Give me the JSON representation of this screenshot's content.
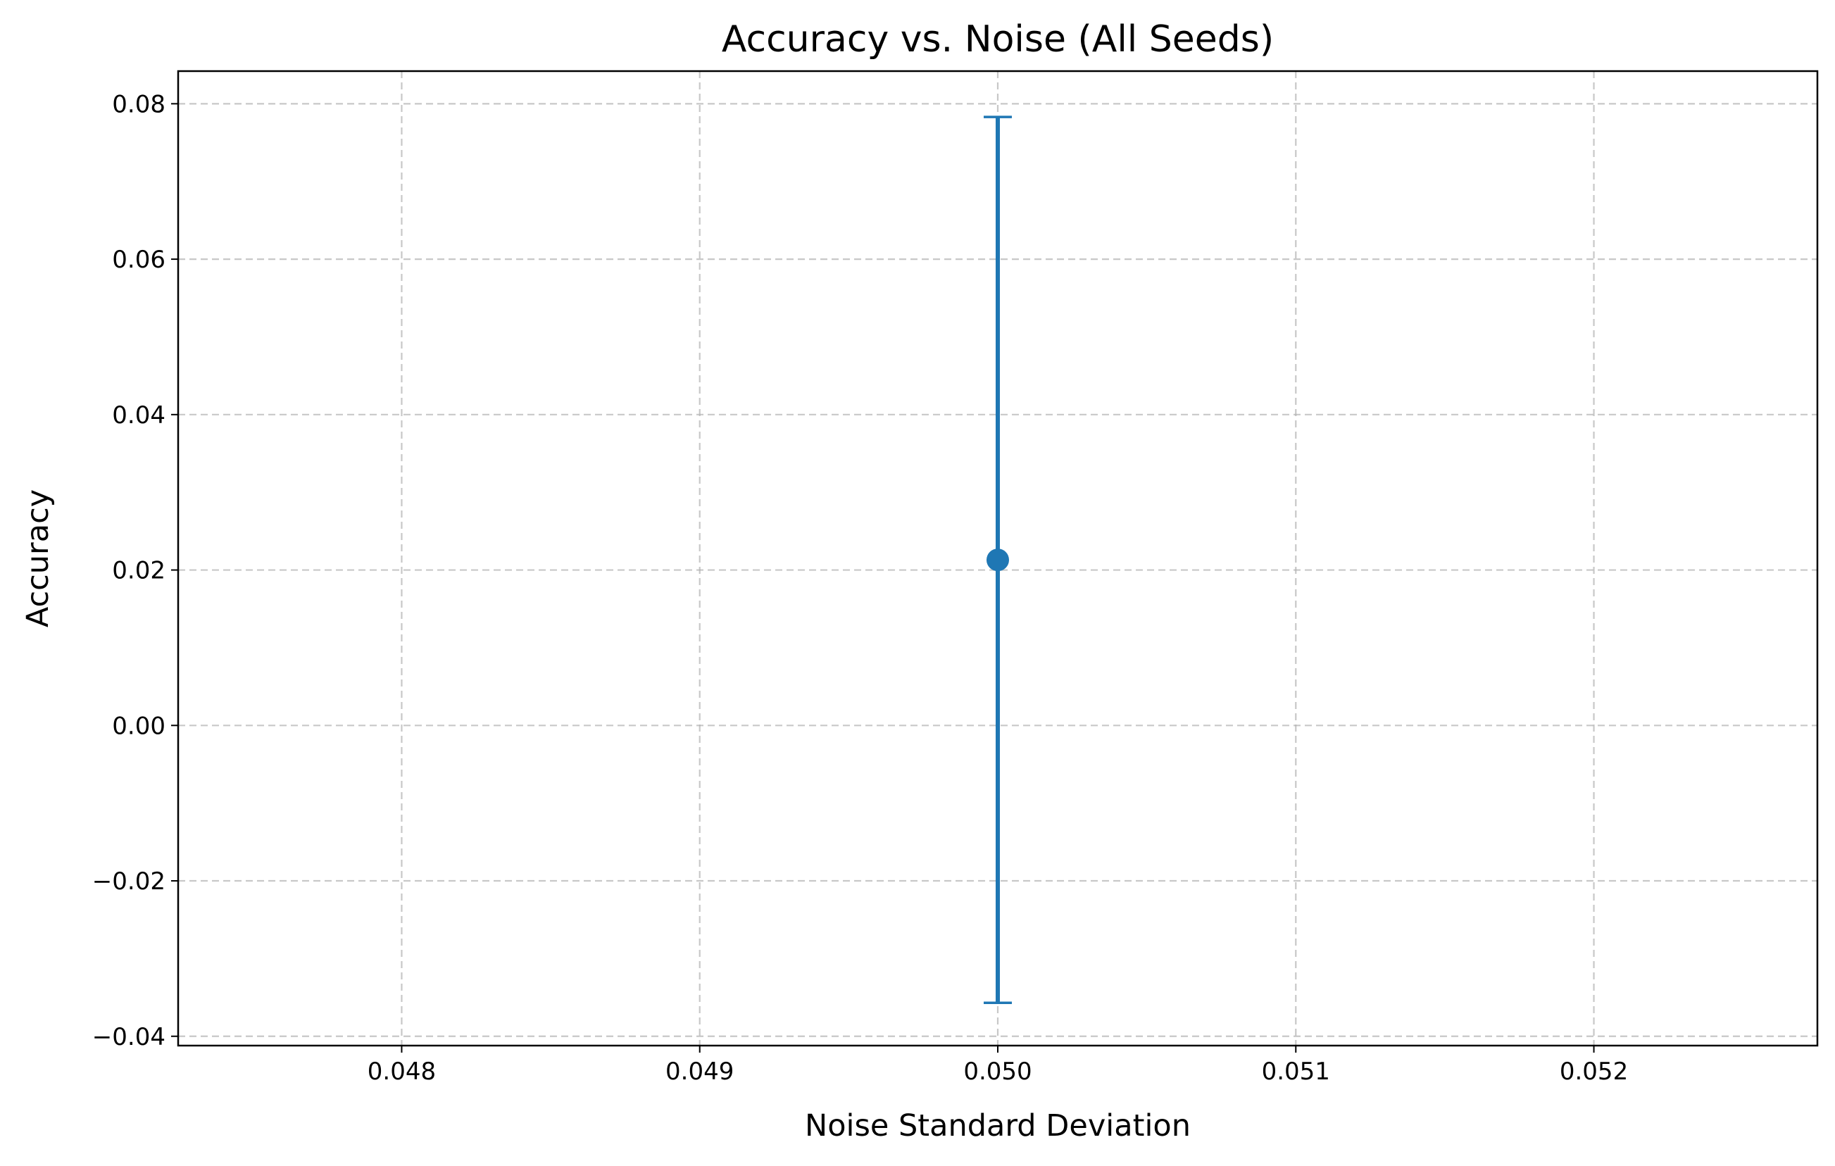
{
  "chart_data": {
    "type": "scatter",
    "title": "Accuracy vs. Noise (All Seeds)",
    "xlabel": "Noise Standard Deviation",
    "ylabel": "Accuracy",
    "xlim": [
      0.04725,
      0.05275
    ],
    "ylim": [
      -0.0412,
      0.0842
    ],
    "grid": true,
    "x_ticks": [
      {
        "value": 0.048,
        "label": "0.048"
      },
      {
        "value": 0.049,
        "label": "0.049"
      },
      {
        "value": 0.05,
        "label": "0.050"
      },
      {
        "value": 0.051,
        "label": "0.051"
      },
      {
        "value": 0.052,
        "label": "0.052"
      }
    ],
    "y_ticks": [
      {
        "value": -0.04,
        "label": "−0.04"
      },
      {
        "value": -0.02,
        "label": "−0.02"
      },
      {
        "value": 0.0,
        "label": "0.00"
      },
      {
        "value": 0.02,
        "label": "0.02"
      },
      {
        "value": 0.04,
        "label": "0.04"
      },
      {
        "value": 0.06,
        "label": "0.06"
      },
      {
        "value": 0.08,
        "label": "0.08"
      }
    ],
    "series": [
      {
        "color": "#1f77b4",
        "points": [
          {
            "x": 0.05,
            "y": 0.0213,
            "y_err": 0.057
          }
        ]
      }
    ]
  }
}
